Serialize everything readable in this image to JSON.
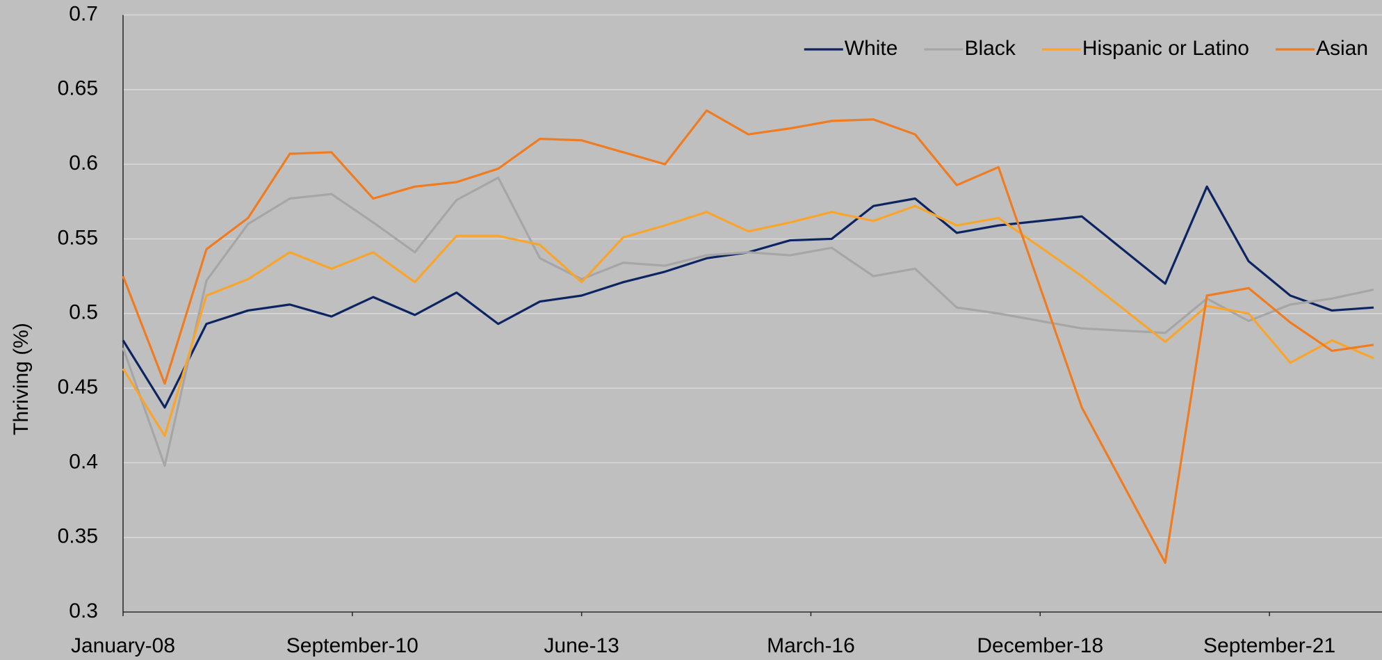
{
  "chart_data": {
    "type": "line",
    "y_label": "Thriving (%)",
    "x": [
      0,
      2,
      4,
      6,
      8,
      10,
      12,
      14,
      16,
      18,
      20,
      22,
      24,
      26,
      28,
      30,
      32,
      34,
      36,
      38,
      40,
      42,
      46,
      50,
      52,
      54,
      56,
      58,
      60
    ],
    "xlim": [
      0,
      60.4
    ],
    "xticks": [
      {
        "value": 0,
        "label": "January-08"
      },
      {
        "value": 11,
        "label": "September-10"
      },
      {
        "value": 22,
        "label": "June-13"
      },
      {
        "value": 33,
        "label": "March-16"
      },
      {
        "value": 44,
        "label": "December-18"
      },
      {
        "value": 55,
        "label": "September-21"
      }
    ],
    "ylim": [
      0.3,
      0.7
    ],
    "yticks": [
      0.3,
      0.35,
      0.4,
      0.45,
      0.5,
      0.55,
      0.6,
      0.65,
      0.7
    ],
    "grid": true,
    "legend": "upper right",
    "series": [
      {
        "name": "White",
        "color": "#0d2463",
        "values": [
          0.482,
          0.437,
          0.493,
          0.502,
          0.506,
          0.498,
          0.511,
          0.499,
          0.514,
          0.493,
          0.508,
          0.512,
          0.521,
          0.528,
          0.537,
          0.541,
          0.549,
          0.55,
          0.572,
          0.577,
          0.554,
          0.559,
          0.565,
          0.52,
          0.585,
          0.535,
          0.512,
          0.502,
          0.504
        ]
      },
      {
        "name": "Black",
        "color": "#a6a6a6",
        "values": [
          0.477,
          0.398,
          0.522,
          0.56,
          0.577,
          0.58,
          0.561,
          0.541,
          0.576,
          0.591,
          0.537,
          0.523,
          0.534,
          0.532,
          0.539,
          0.541,
          0.539,
          0.544,
          0.525,
          0.53,
          0.504,
          0.5,
          0.49,
          0.487,
          0.51,
          0.495,
          0.506,
          0.51,
          0.516
        ]
      },
      {
        "name": "Hispanic or Latino",
        "color": "#f9a52c",
        "values": [
          0.463,
          0.418,
          0.512,
          0.523,
          0.541,
          0.53,
          0.541,
          0.521,
          0.552,
          0.552,
          0.546,
          0.521,
          0.551,
          0.559,
          0.568,
          0.555,
          0.561,
          0.568,
          0.562,
          0.572,
          0.559,
          0.564,
          0.525,
          0.481,
          0.505,
          0.5,
          0.467,
          0.482,
          0.47
        ]
      },
      {
        "name": "Asian",
        "color": "#f07c21",
        "values": [
          0.525,
          0.453,
          0.543,
          0.564,
          0.607,
          0.608,
          0.577,
          0.585,
          0.588,
          0.597,
          0.617,
          0.616,
          0.608,
          0.6,
          0.636,
          0.62,
          0.624,
          0.629,
          0.63,
          0.62,
          0.586,
          0.598,
          0.437,
          0.333,
          0.512,
          0.517,
          0.494,
          0.475,
          0.479
        ]
      }
    ]
  }
}
